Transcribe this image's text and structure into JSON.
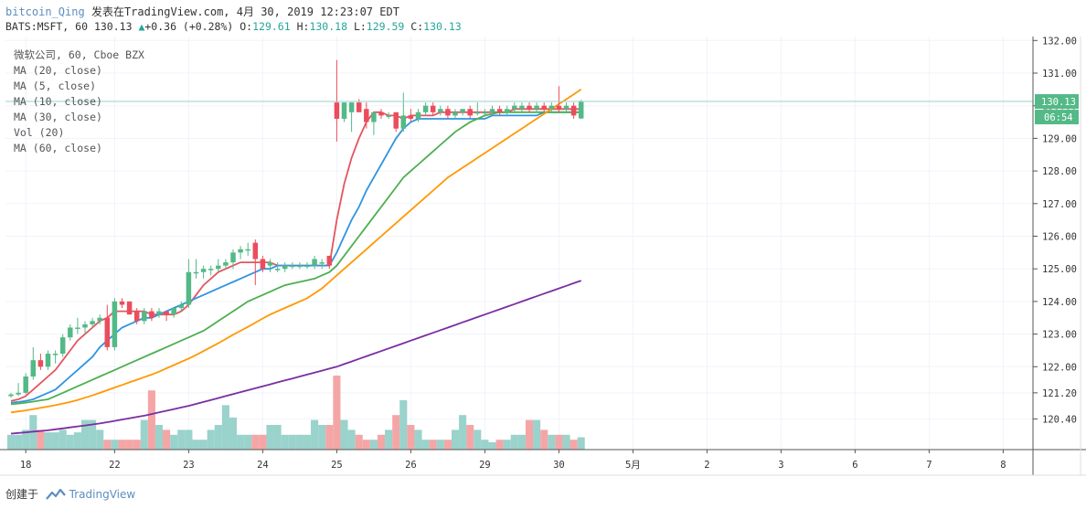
{
  "header": {
    "user": "bitcoin_Qing",
    "published": "发表在TradingView.com, 4月 30, 2019 12:23:07 EDT"
  },
  "quote": {
    "symbol": "BATS:MSFT, 60",
    "last": "130.13",
    "change": "+0.36 (+0.28%)",
    "o_label": "O:",
    "o": "129.61",
    "h_label": "H:",
    "h": "130.18",
    "l_label": "L:",
    "l": "129.59",
    "c_label": "C:",
    "c": "130.13",
    "up_color": "#26a69a"
  },
  "legend": [
    "微软公司, 60, Cboe BZX",
    "MA (20, close)",
    "MA (5, close)",
    "MA (10, close)",
    "MA (30, close)",
    "Vol (20)",
    "MA (60, close)"
  ],
  "price_axis": {
    "ticks": [
      "132.00",
      "131.00",
      "130.00",
      "129.00",
      "128.00",
      "127.00",
      "126.00",
      "125.00",
      "124.00",
      "123.00",
      "122.00",
      "121.20",
      "120.40"
    ],
    "last_price_label": "130.13",
    "countdown_label": "06:54"
  },
  "footer": {
    "created_by": "创建于",
    "brand": "TradingView"
  },
  "chart_data": {
    "type": "candlestick",
    "x_ticks": [
      {
        "label": "18",
        "bar": 2
      },
      {
        "label": "22",
        "bar": 14
      },
      {
        "label": "23",
        "bar": 24
      },
      {
        "label": "24",
        "bar": 34
      },
      {
        "label": "25",
        "bar": 44
      },
      {
        "label": "26",
        "bar": 54
      },
      {
        "label": "29",
        "bar": 64
      },
      {
        "label": "30",
        "bar": 74
      },
      {
        "label": "5月",
        "bar": 84
      },
      {
        "label": "2",
        "bar": 94
      },
      {
        "label": "3",
        "bar": 104
      },
      {
        "label": "6",
        "bar": 114
      },
      {
        "label": "7",
        "bar": 124
      },
      {
        "label": "8",
        "bar": 134
      }
    ],
    "candles": [
      [
        121.1,
        121.2,
        121.05,
        121.15
      ],
      [
        121.15,
        121.5,
        121.1,
        121.2
      ],
      [
        121.2,
        121.8,
        121.15,
        121.7
      ],
      [
        121.7,
        122.6,
        121.6,
        122.2
      ],
      [
        122.2,
        122.4,
        121.9,
        122.0
      ],
      [
        122.0,
        122.5,
        121.9,
        122.4
      ],
      [
        122.4,
        122.5,
        122.1,
        122.4
      ],
      [
        122.4,
        123.0,
        122.3,
        122.9
      ],
      [
        122.9,
        123.3,
        122.8,
        123.2
      ],
      [
        123.2,
        123.5,
        123.0,
        123.2
      ],
      [
        123.2,
        123.4,
        123.0,
        123.3
      ],
      [
        123.3,
        123.5,
        123.2,
        123.4
      ],
      [
        123.4,
        123.6,
        123.3,
        123.5
      ],
      [
        123.5,
        123.9,
        122.5,
        122.6
      ],
      [
        122.6,
        124.1,
        122.5,
        124.0
      ],
      [
        124.0,
        124.1,
        123.8,
        123.9
      ],
      [
        124.0,
        124.0,
        123.6,
        123.6
      ],
      [
        123.7,
        123.8,
        123.3,
        123.4
      ],
      [
        123.4,
        123.8,
        123.3,
        123.7
      ],
      [
        123.7,
        123.8,
        123.4,
        123.5
      ],
      [
        123.6,
        123.8,
        123.5,
        123.7
      ],
      [
        123.7,
        123.7,
        123.4,
        123.6
      ],
      [
        123.6,
        123.8,
        123.5,
        123.8
      ],
      [
        123.8,
        124.0,
        123.7,
        123.9
      ],
      [
        123.9,
        125.3,
        123.8,
        124.9
      ],
      [
        124.9,
        125.3,
        124.7,
        124.9
      ],
      [
        124.9,
        125.1,
        124.7,
        125.0
      ],
      [
        125.0,
        125.1,
        124.8,
        125.0
      ],
      [
        125.0,
        125.3,
        124.9,
        125.1
      ],
      [
        125.1,
        125.3,
        125.0,
        125.2
      ],
      [
        125.2,
        125.6,
        125.0,
        125.5
      ],
      [
        125.5,
        125.7,
        125.3,
        125.6
      ],
      [
        125.6,
        125.8,
        125.4,
        125.6
      ],
      [
        125.8,
        125.9,
        124.5,
        125.3
      ],
      [
        125.3,
        125.4,
        124.9,
        125.0
      ],
      [
        125.1,
        125.3,
        124.9,
        125.2
      ],
      [
        125.0,
        125.2,
        124.9,
        125.0
      ],
      [
        125.0,
        125.2,
        124.9,
        125.1
      ],
      [
        125.1,
        125.2,
        125.0,
        125.1
      ],
      [
        125.1,
        125.2,
        125.0,
        125.1
      ],
      [
        125.1,
        125.2,
        125.0,
        125.1
      ],
      [
        125.1,
        125.4,
        125.0,
        125.3
      ],
      [
        125.2,
        125.3,
        125.0,
        125.2
      ],
      [
        125.4,
        125.4,
        125.0,
        125.1
      ],
      [
        130.1,
        131.4,
        128.9,
        129.6
      ],
      [
        129.6,
        130.1,
        129.5,
        130.1
      ],
      [
        129.8,
        130.1,
        129.2,
        130.1
      ],
      [
        130.1,
        130.2,
        129.8,
        129.8
      ],
      [
        129.9,
        130.1,
        129.3,
        129.5
      ],
      [
        129.5,
        129.8,
        129.1,
        129.8
      ],
      [
        129.8,
        129.9,
        129.6,
        129.7
      ],
      [
        129.7,
        129.8,
        129.6,
        129.7
      ],
      [
        129.8,
        129.8,
        129.2,
        129.3
      ],
      [
        129.3,
        130.4,
        129.2,
        129.7
      ],
      [
        129.7,
        129.9,
        129.5,
        129.6
      ],
      [
        129.6,
        129.9,
        129.5,
        129.8
      ],
      [
        129.8,
        130.1,
        129.7,
        130.0
      ],
      [
        130.0,
        130.1,
        129.7,
        129.8
      ],
      [
        129.8,
        130.0,
        129.7,
        129.9
      ],
      [
        129.9,
        130.0,
        129.6,
        129.7
      ],
      [
        129.7,
        129.9,
        129.6,
        129.8
      ],
      [
        129.8,
        129.9,
        129.7,
        129.9
      ],
      [
        129.9,
        130.0,
        129.6,
        129.7
      ],
      [
        129.8,
        130.1,
        129.7,
        129.8
      ],
      [
        129.8,
        129.9,
        129.7,
        129.8
      ],
      [
        129.8,
        130.0,
        129.7,
        129.9
      ],
      [
        129.9,
        130.0,
        129.7,
        129.8
      ],
      [
        129.8,
        130.0,
        129.7,
        129.9
      ],
      [
        129.9,
        130.1,
        129.8,
        130.0
      ],
      [
        129.9,
        130.1,
        129.8,
        130.0
      ],
      [
        130.0,
        130.1,
        129.8,
        129.9
      ],
      [
        129.9,
        130.1,
        129.8,
        130.0
      ],
      [
        130.0,
        130.1,
        129.8,
        129.9
      ],
      [
        129.9,
        130.1,
        129.8,
        130.0
      ],
      [
        130.0,
        130.6,
        129.8,
        129.9
      ],
      [
        129.9,
        130.1,
        129.8,
        130.0
      ],
      [
        130.0,
        130.1,
        129.6,
        129.7
      ],
      [
        129.61,
        130.18,
        129.59,
        130.13
      ]
    ],
    "volume": [
      6,
      6,
      8,
      14,
      8,
      7,
      7,
      8,
      6,
      7,
      12,
      12,
      8,
      4,
      4,
      4,
      4,
      4,
      12,
      24,
      10,
      8,
      6,
      8,
      8,
      4,
      4,
      8,
      10,
      18,
      13,
      6,
      6,
      6,
      6,
      10,
      10,
      6,
      6,
      6,
      6,
      12,
      10,
      10,
      30,
      12,
      8,
      6,
      4,
      4,
      6,
      8,
      14,
      20,
      10,
      8,
      4,
      4,
      4,
      4,
      8,
      14,
      10,
      8,
      4,
      3,
      4,
      4,
      6,
      6,
      12,
      12,
      8,
      6,
      6,
      6,
      4,
      5
    ],
    "ma_series": [
      {
        "name": "MA (5, close)",
        "color": "#e45560"
      },
      {
        "name": "MA (10, close)",
        "color": "#2f94e0"
      },
      {
        "name": "MA (20, close)",
        "color": "#4caf50"
      },
      {
        "name": "MA (30, close)",
        "color": "#ff9800"
      },
      {
        "name": "MA (60, close)",
        "color": "#7b2ea1"
      }
    ],
    "ma_values": {
      "MA (5, close)": [
        120.95,
        121.0,
        121.1,
        121.3,
        121.5,
        121.7,
        121.9,
        122.2,
        122.5,
        122.8,
        123.0,
        123.2,
        123.4,
        123.5,
        123.7,
        123.7,
        123.7,
        123.7,
        123.7,
        123.6,
        123.6,
        123.6,
        123.6,
        123.7,
        123.9,
        124.2,
        124.5,
        124.7,
        124.9,
        125.0,
        125.1,
        125.2,
        125.2,
        125.2,
        125.2,
        125.2,
        125.1,
        125.1,
        125.1,
        125.1,
        125.1,
        125.1,
        125.1,
        125.1,
        126.5,
        127.6,
        128.4,
        129.0,
        129.5,
        129.8,
        129.8,
        129.7,
        129.7,
        129.6,
        129.7,
        129.7,
        129.7,
        129.7,
        129.8,
        129.8,
        129.8,
        129.8,
        129.8,
        129.8,
        129.8,
        129.8,
        129.8,
        129.8,
        129.9,
        129.9,
        129.9,
        129.9,
        129.9,
        129.9,
        129.9,
        129.9,
        129.9,
        129.9
      ],
      "MA (10, close)": [
        120.9,
        120.92,
        120.95,
        121.0,
        121.1,
        121.2,
        121.3,
        121.5,
        121.7,
        121.9,
        122.1,
        122.3,
        122.6,
        122.8,
        123.0,
        123.2,
        123.3,
        123.4,
        123.5,
        123.5,
        123.6,
        123.7,
        123.8,
        123.9,
        124.0,
        124.1,
        124.2,
        124.3,
        124.4,
        124.5,
        124.6,
        124.7,
        124.8,
        124.9,
        125.0,
        125.0,
        125.1,
        125.1,
        125.1,
        125.1,
        125.1,
        125.1,
        125.1,
        125.1,
        125.5,
        126.0,
        126.5,
        126.9,
        127.4,
        127.8,
        128.2,
        128.6,
        129.0,
        129.3,
        129.5,
        129.6,
        129.6,
        129.6,
        129.6,
        129.6,
        129.6,
        129.6,
        129.6,
        129.6,
        129.6,
        129.7,
        129.7,
        129.7,
        129.7,
        129.7,
        129.7,
        129.7,
        129.8,
        129.8,
        129.8,
        129.8,
        129.8,
        129.8
      ],
      "MA (20, close)": [
        120.85,
        120.87,
        120.9,
        120.93,
        120.97,
        121.0,
        121.1,
        121.2,
        121.3,
        121.4,
        121.5,
        121.6,
        121.7,
        121.8,
        121.9,
        122.0,
        122.1,
        122.2,
        122.3,
        122.4,
        122.5,
        122.6,
        122.7,
        122.8,
        122.9,
        123.0,
        123.1,
        123.25,
        123.4,
        123.55,
        123.7,
        123.85,
        124.0,
        124.1,
        124.2,
        124.3,
        124.4,
        124.5,
        124.55,
        124.6,
        124.65,
        124.7,
        124.8,
        124.9,
        125.1,
        125.4,
        125.7,
        126.0,
        126.3,
        126.6,
        126.9,
        127.2,
        127.5,
        127.8,
        128.0,
        128.2,
        128.4,
        128.6,
        128.8,
        129.0,
        129.2,
        129.35,
        129.5,
        129.6,
        129.7,
        129.75,
        129.8,
        129.8,
        129.8,
        129.8,
        129.8,
        129.8,
        129.8,
        129.8,
        129.8,
        129.8,
        129.8,
        129.8
      ],
      "MA (30, close)": [
        120.6,
        120.63,
        120.66,
        120.7,
        120.74,
        120.78,
        120.82,
        120.87,
        120.92,
        120.98,
        121.05,
        121.12,
        121.2,
        121.28,
        121.36,
        121.44,
        121.52,
        121.6,
        121.68,
        121.76,
        121.85,
        121.95,
        122.05,
        122.15,
        122.25,
        122.36,
        122.48,
        122.6,
        122.72,
        122.85,
        122.98,
        123.1,
        123.22,
        123.35,
        123.48,
        123.6,
        123.7,
        123.8,
        123.9,
        124.0,
        124.1,
        124.25,
        124.4,
        124.6,
        124.8,
        125.0,
        125.2,
        125.4,
        125.6,
        125.8,
        126.0,
        126.2,
        126.4,
        126.6,
        126.8,
        127.0,
        127.2,
        127.4,
        127.6,
        127.8,
        127.95,
        128.1,
        128.25,
        128.4,
        128.55,
        128.7,
        128.85,
        129.0,
        129.15,
        129.3,
        129.45,
        129.6,
        129.75,
        129.9,
        130.05,
        130.2,
        130.35,
        130.5
      ],
      "MA (60, close)": [
        119.95,
        119.97,
        119.99,
        120.01,
        120.03,
        120.05,
        120.08,
        120.11,
        120.14,
        120.17,
        120.2,
        120.23,
        120.26,
        120.3,
        120.34,
        120.38,
        120.42,
        120.46,
        120.5,
        120.55,
        120.6,
        120.65,
        120.7,
        120.75,
        120.8,
        120.86,
        120.92,
        120.98,
        121.04,
        121.1,
        121.16,
        121.22,
        121.28,
        121.34,
        121.4,
        121.46,
        121.52,
        121.58,
        121.64,
        121.7,
        121.76,
        121.82,
        121.88,
        121.94,
        122.0,
        122.08,
        122.16,
        122.24,
        122.32,
        122.4,
        122.48,
        122.56,
        122.64,
        122.72,
        122.8,
        122.88,
        122.96,
        123.04,
        123.12,
        123.2,
        123.28,
        123.36,
        123.44,
        123.52,
        123.6,
        123.68,
        123.76,
        123.84,
        123.92,
        124.0,
        124.08,
        124.16,
        124.24,
        124.32,
        124.4,
        124.48,
        124.56,
        124.64
      ]
    },
    "colors": {
      "up": "#53b987",
      "down": "#eb4d5c",
      "vol_up": "#9ad2cc",
      "vol_down": "#f4a6a6",
      "grid": "#f0f3fa",
      "axis": "#555555",
      "price_label_bg": "#53b987"
    },
    "y_range": [
      119.5,
      132.3
    ]
  }
}
